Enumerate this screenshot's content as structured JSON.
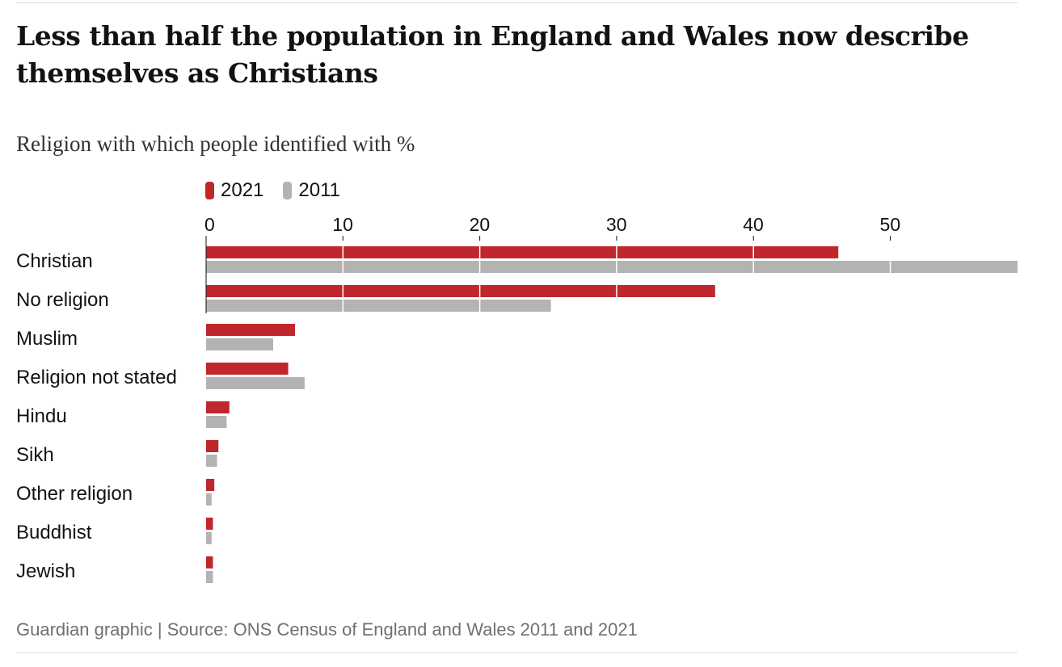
{
  "header": {
    "title": "Less than half the population in England and Wales now describe themselves as Christians",
    "subtitle": "Religion with which people identified with %"
  },
  "legend": [
    {
      "label": "2021",
      "color": "#c0272d"
    },
    {
      "label": "2011",
      "color": "#b3b3b3"
    }
  ],
  "footer": {
    "source": "Guardian graphic | Source: ONS Census of England and Wales 2011 and 2021"
  },
  "chart_data": {
    "type": "bar",
    "orientation": "horizontal",
    "categories": [
      "Christian",
      "No religion",
      "Muslim",
      "Religion not stated",
      "Hindu",
      "Sikh",
      "Other religion",
      "Buddhist",
      "Jewish"
    ],
    "series": [
      {
        "name": "2021",
        "color": "#c0272d",
        "values": [
          46.2,
          37.2,
          6.5,
          6.0,
          1.7,
          0.9,
          0.6,
          0.5,
          0.5
        ]
      },
      {
        "name": "2011",
        "color": "#b3b3b3",
        "values": [
          59.3,
          25.2,
          4.9,
          7.2,
          1.5,
          0.8,
          0.4,
          0.4,
          0.5
        ]
      }
    ],
    "xticks": [
      0,
      10,
      20,
      30,
      40,
      50
    ],
    "xlim": [
      0,
      59.3
    ],
    "grid": true,
    "legend_position": "top-left"
  }
}
